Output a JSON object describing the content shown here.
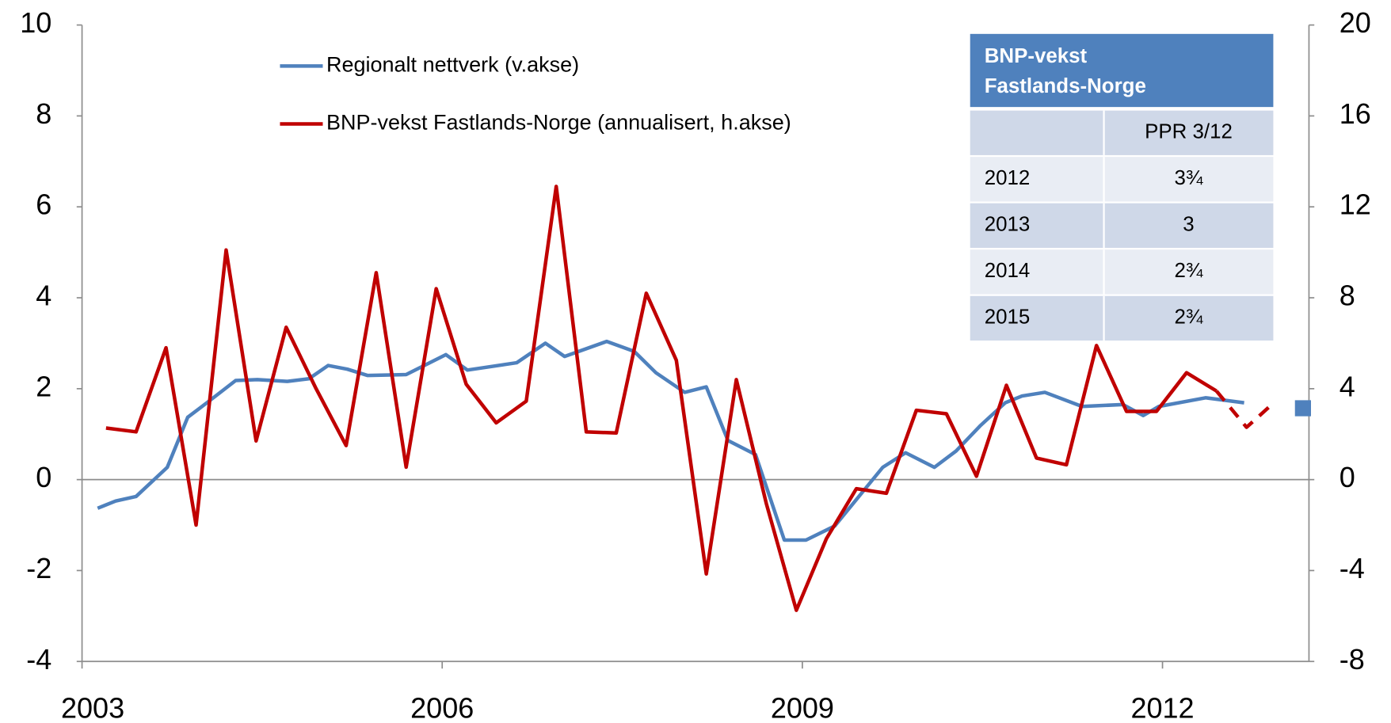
{
  "chart_data": {
    "type": "line",
    "xlim": [
      2003,
      2013.22
    ],
    "xticks": [
      2003,
      2006,
      2009,
      2012
    ],
    "ylim": [
      -4,
      10
    ],
    "yticks": [
      -4,
      -2,
      0,
      2,
      4,
      6,
      8,
      10
    ],
    "y2lim": [
      -8,
      20
    ],
    "y2ticks": [
      -8,
      -4,
      0,
      4,
      8,
      12,
      16,
      20
    ],
    "legend": "top",
    "series": [
      {
        "name": "Regionalt nettverk (v.akse)",
        "color": "#4f81bd",
        "axis": "y",
        "x": [
          2003.13,
          2003.28,
          2003.45,
          2003.71,
          2003.88,
          2004.04,
          2004.28,
          2004.46,
          2004.71,
          2004.89,
          2005.05,
          2005.21,
          2005.38,
          2005.7,
          2006.03,
          2006.21,
          2006.62,
          2006.86,
          2007.02,
          2007.37,
          2007.6,
          2007.78,
          2008.02,
          2008.2,
          2008.38,
          2008.61,
          2008.85,
          2009.03,
          2009.27,
          2009.67,
          2009.86,
          2010.1,
          2010.28,
          2010.48,
          2010.69,
          2010.83,
          2011.02,
          2011.33,
          2011.67,
          2011.84,
          2011.97,
          2012.36,
          2012.68
        ],
        "values": [
          -0.63,
          -0.47,
          -0.37,
          0.27,
          1.37,
          1.69,
          2.18,
          2.2,
          2.16,
          2.22,
          2.51,
          2.43,
          2.29,
          2.31,
          2.75,
          2.41,
          2.57,
          3.0,
          2.71,
          3.04,
          2.82,
          2.35,
          1.92,
          2.04,
          0.86,
          0.55,
          -1.33,
          -1.33,
          -1.02,
          0.27,
          0.59,
          0.27,
          0.63,
          1.18,
          1.69,
          1.84,
          1.92,
          1.61,
          1.65,
          1.41,
          1.61,
          1.8,
          1.69
        ]
      },
      {
        "name": "BNP-vekst Fastlands-Norge (annualisert, h.akse)",
        "color": "#c00000",
        "axis": "y2",
        "x": [
          2003.2,
          2003.45,
          2003.7,
          2003.95,
          2004.2,
          2004.45,
          2004.7,
          2004.95,
          2005.2,
          2005.45,
          2005.7,
          2005.95,
          2006.2,
          2006.45,
          2006.7,
          2006.95,
          2007.2,
          2007.45,
          2007.7,
          2007.95,
          2008.2,
          2008.45,
          2008.7,
          2008.95,
          2009.2,
          2009.45,
          2009.7,
          2009.95,
          2010.2,
          2010.45,
          2010.7,
          2010.95,
          2011.2,
          2011.45,
          2011.7,
          2011.95,
          2012.2,
          2012.45
        ],
        "values": [
          2.27,
          2.1,
          5.8,
          -2.0,
          10.1,
          1.7,
          6.7,
          4.0,
          1.5,
          9.1,
          0.55,
          8.4,
          4.2,
          2.5,
          3.45,
          12.9,
          2.1,
          2.05,
          8.2,
          5.25,
          -4.15,
          4.4,
          -1.05,
          -5.75,
          -2.6,
          -0.4,
          -0.6,
          3.05,
          2.9,
          0.15,
          4.15,
          0.95,
          0.65,
          5.9,
          3.0,
          3.0,
          4.7,
          3.9
        ]
      },
      {
        "color": "#c00000",
        "axis": "y2",
        "dashed": true,
        "x": [
          2012.45,
          2012.7,
          2012.9
        ],
        "values": [
          3.9,
          2.3,
          3.25
        ]
      }
    ],
    "markers": [
      {
        "color": "#4f81bd",
        "axis": "y",
        "x": 2013.17,
        "value": 1.57
      }
    ],
    "table": {
      "title": [
        "BNP-vekst",
        "Fastlands-Norge"
      ],
      "header": "PPR 3/12",
      "rows": [
        [
          "2012",
          "3¾"
        ],
        [
          "2013",
          "3"
        ],
        [
          "2014",
          "2¾"
        ],
        [
          "2015",
          "2¾"
        ]
      ]
    }
  }
}
